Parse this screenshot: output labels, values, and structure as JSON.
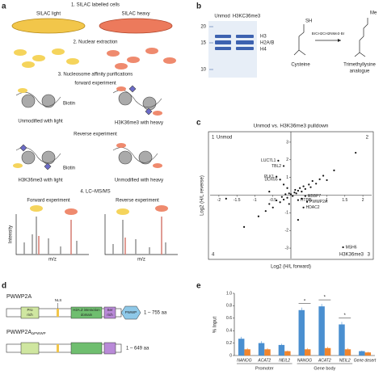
{
  "figure": {
    "a": {
      "label": "a",
      "step1": "1. SILAC labelled cells",
      "light": "SILAC light",
      "heavy": "SILAC heavy",
      "step2": "2. Nuclear extraction",
      "step3": "3. Nucleosome affinity purifications",
      "forward": "forward experiment",
      "biotin1": "Biotin",
      "fwd_left": "Unmodified with light",
      "fwd_right": "H3K36me3 with heavy",
      "reverse": "Reverse experiment",
      "biotin2": "Biotin",
      "rev_left": "H3K36me3 with light",
      "rev_right": "Unmodified with heavy",
      "step4": "4. LC–MS/MS",
      "ms_fwd": "Forward experiment",
      "ms_rev": "Reverse experiment",
      "intensity": "Intensity",
      "mz1": "m/z",
      "mz2": "m/z"
    },
    "b": {
      "label": "b",
      "lane1": "Unmod",
      "lane2": "H3KC36me3",
      "marker20": "20",
      "marker15": "15",
      "marker10": "10",
      "band1": "H3",
      "band2": "H2A/B",
      "band3": "H4",
      "cysteine": "Cysteine",
      "reagent": "BrCH2CH2NMe3·Br",
      "product1": "Trimethyllysine",
      "product2": "analogue",
      "sh": "SH",
      "me": "Me"
    },
    "c": {
      "label": "c"
    },
    "d": {
      "label": "d",
      "name1": "PWWP2A",
      "name2": "PWWP2A",
      "name2_sub": "ΔPWWP",
      "pro1": "Pro",
      "pro2": "rich",
      "nls": "NLS",
      "h2az1": "H2A.Z interaction",
      "h2az2": "domain",
      "ser1": "Ser",
      "ser2": "rich",
      "pwwp": "PWWP",
      "len1": "1 – 755 aa",
      "len2": "1 – 649 aa"
    },
    "e": {
      "label": "e"
    }
  },
  "chart_data": [
    {
      "type": "scatter",
      "title": "Unmod vs. H3K36me3 pulldown",
      "x_label": "Log2 (H/L forward)",
      "y_label": "Log2 (H/L reverse)",
      "quadrants": [
        "1",
        "2",
        "3",
        "4"
      ],
      "top_left_label": "Unmod",
      "bottom_right_label": "H3K36me3",
      "highlight_color": "#d42a2a",
      "xlim": [
        -2.2,
        2.2
      ],
      "ylim": [
        -3.5,
        3.5
      ],
      "xticks": [
        -2,
        -1.5,
        -1,
        -0.5,
        0.5,
        1,
        1.5,
        2
      ],
      "yticks": [
        -3,
        -2,
        -1,
        1,
        2,
        3
      ],
      "color": "#111111",
      "x": [
        -0.35,
        -0.2,
        -0.4,
        -0.3,
        0.4,
        0.2,
        0.45,
        0.35,
        1.45,
        -1.3,
        -0.9,
        -0.7,
        -0.6,
        -0.5,
        -0.4,
        -0.3,
        -0.25,
        -0.2,
        -0.15,
        -0.1,
        -0.05,
        0,
        0.05,
        0.1,
        0.12,
        0.15,
        0.2,
        0.25,
        0.3,
        0.35,
        0.4,
        0.5,
        0.55,
        0.6,
        0.7,
        0.8,
        0.9,
        1.0,
        1.2,
        -0.1,
        -0.2,
        -0.05,
        0.3,
        1.8,
        -1.8,
        0.2,
        -0.6
      ],
      "y": [
        1.95,
        1.65,
        1.05,
        0.88,
        -0.05,
        -0.28,
        -0.38,
        -0.7,
        -2.95,
        -1.8,
        -1.2,
        -0.9,
        -0.5,
        -0.7,
        -0.3,
        -0.4,
        -0.1,
        -0.25,
        0.05,
        -0.15,
        0.1,
        0.05,
        -0.05,
        0.15,
        0.3,
        0.1,
        0.25,
        0.4,
        0.2,
        0.5,
        0.35,
        0.6,
        0.45,
        0.8,
        0.65,
        0.9,
        1.1,
        0.85,
        1.4,
        0.4,
        0.6,
        -0.5,
        -0.2,
        2.4,
        -0.2,
        -1.4,
        0.2
      ],
      "labels": [
        "LUC7L1",
        "TBL2",
        "PLK1",
        "DDX55",
        "RBBP7",
        "HTLF",
        "PWWP2A",
        "HDAC2",
        "MSH6",
        null,
        null,
        null,
        null,
        null,
        null,
        null,
        null,
        null,
        null,
        null,
        null,
        null,
        null,
        null,
        null,
        null,
        null,
        null,
        null,
        null,
        null,
        null,
        null,
        null,
        null,
        null,
        null,
        null,
        null,
        null,
        null,
        null,
        null,
        null,
        null,
        null,
        null
      ]
    },
    {
      "type": "bar",
      "y_label": "% Input",
      "categories": [
        "NANOG",
        "ACAT2",
        "NEIL2",
        "NANOG",
        "ACAT2",
        "NEIL2",
        "Gene desert"
      ],
      "groups": [
        "Promoter",
        "Gene body"
      ],
      "annotations": [
        "*",
        "*",
        "*"
      ],
      "ylim": [
        0,
        1
      ],
      "yticks": [
        0,
        0.2,
        0.4,
        0.6,
        0.8,
        {
          "value": 1,
          "label": "1.0"
        }
      ],
      "series": [
        {
          "color": "#4a8fd0",
          "values": [
            0.27,
            0.2,
            0.17,
            0.73,
            0.79,
            0.5,
            0.07
          ],
          "errors": [
            0.03,
            0.03,
            0.02,
            0.04,
            0.04,
            0.04,
            0.01
          ]
        },
        {
          "color": "#f0852d",
          "values": [
            0.1,
            0.1,
            0.07,
            0.1,
            0.12,
            0.1,
            0.05
          ],
          "errors": [
            0.02,
            0.02,
            0.01,
            0.02,
            0.02,
            0.02,
            0.01
          ]
        }
      ]
    }
  ]
}
